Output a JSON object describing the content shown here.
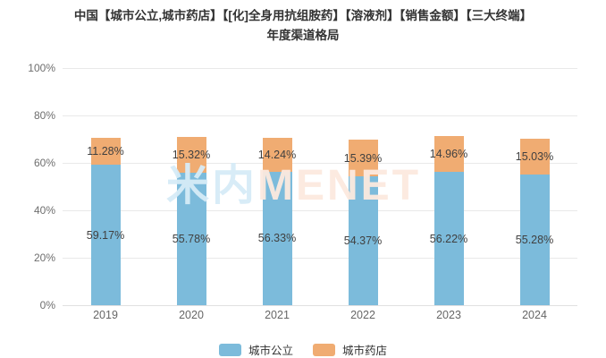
{
  "title": {
    "line1": "中国【城市公立,城市药店】【[化]全身用抗组胺药】【溶液剂】【销售金额】【三大终端】",
    "line2": "年度渠道格局"
  },
  "watermark": {
    "part1": "米内",
    "part2": "MENET"
  },
  "colors": {
    "series_blue": "#7CBBDB",
    "series_orange": "#F0AC72",
    "grid": "#E9E9E9",
    "axis_text": "#666666",
    "value_label_text": "#404040",
    "title_text": "#333333"
  },
  "chart_data": {
    "type": "bar",
    "stacked": true,
    "title": "中国【城市公立,城市药店】【[化]全身用抗组胺药】【溶液剂】【销售金额】【三大终端】年度渠道格局",
    "categories": [
      "2019",
      "2020",
      "2021",
      "2022",
      "2023",
      "2024"
    ],
    "series": [
      {
        "name": "城市公立",
        "color": "#7CBBDB",
        "values": [
          59.17,
          55.78,
          56.33,
          54.37,
          56.22,
          55.28
        ]
      },
      {
        "name": "城市药店",
        "color": "#F0AC72",
        "values": [
          11.28,
          15.32,
          14.24,
          15.39,
          14.96,
          15.03
        ]
      }
    ],
    "value_suffix": "%",
    "xlabel": "",
    "ylabel": "",
    "ylim": [
      0,
      100
    ],
    "y_ticks": [
      0,
      20,
      40,
      60,
      80,
      100
    ],
    "y_tick_suffix": "%",
    "grid": true,
    "legend_position": "bottom"
  }
}
